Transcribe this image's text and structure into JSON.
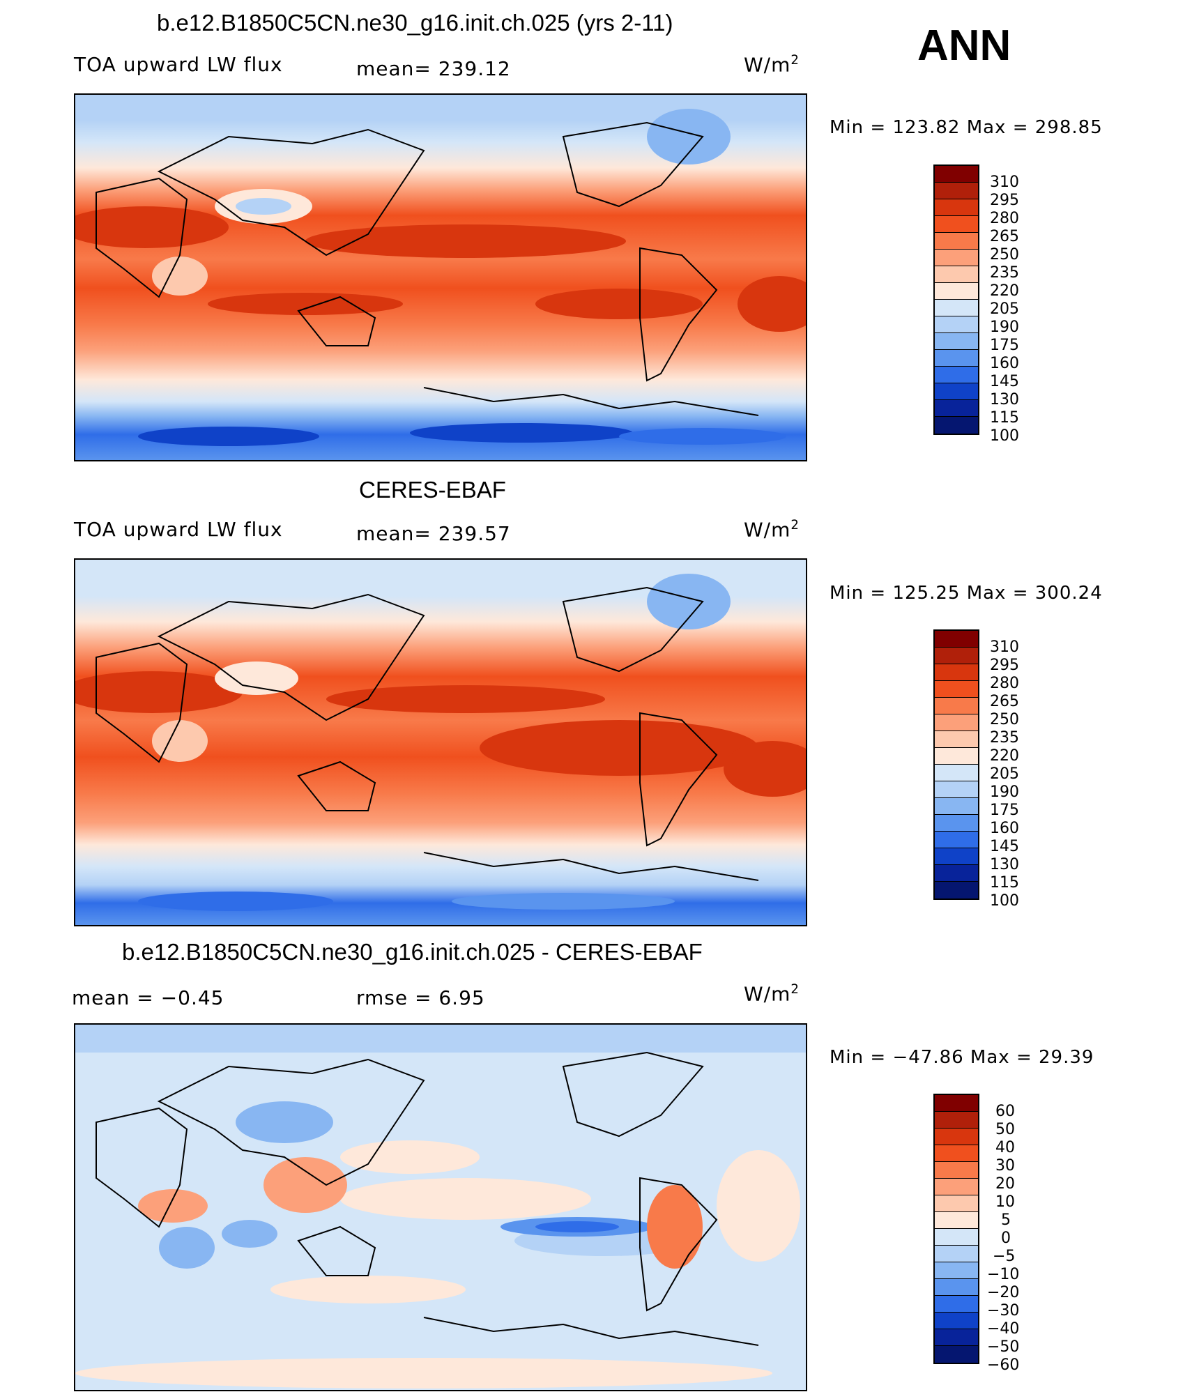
{
  "header": {
    "season": "ANN"
  },
  "panels": [
    {
      "id": "model",
      "title": "b.e12.B1850C5CN.ne30_g16.init.ch.025 (yrs 2-11)",
      "left_label": "TOA upward LW flux",
      "center_label": "mean=  239.12",
      "units": "W/m",
      "units_exp": "2",
      "minmax": "Min  =  123.82  Max  =  298.85",
      "map": "Global map of annual-mean TOA upward LW flux (model)",
      "colorbar_ticks": [
        "310",
        "295",
        "280",
        "265",
        "250",
        "235",
        "220",
        "205",
        "190",
        "175",
        "160",
        "145",
        "130",
        "115",
        "100"
      ]
    },
    {
      "id": "obs",
      "title": "CERES-EBAF",
      "left_label": "TOA upward LW flux",
      "center_label": "mean=  239.57",
      "units": "W/m",
      "units_exp": "2",
      "minmax": "Min  =  125.25  Max  =  300.24",
      "map": "Global map of annual-mean TOA upward LW flux (CERES-EBAF)",
      "colorbar_ticks": [
        "310",
        "295",
        "280",
        "265",
        "250",
        "235",
        "220",
        "205",
        "190",
        "175",
        "160",
        "145",
        "130",
        "115",
        "100"
      ]
    },
    {
      "id": "diff",
      "title": "b.e12.B1850C5CN.ne30_g16.init.ch.025 - CERES-EBAF",
      "left_label": "mean  =    −0.45",
      "center_label": "rmse  =     6.95",
      "units": "W/m",
      "units_exp": "2",
      "minmax": "Min  =  −47.86  Max  =    29.39",
      "map": "Global map of model minus CERES-EBAF difference",
      "colorbar_ticks": [
        "60",
        "50",
        "40",
        "30",
        "20",
        "10",
        "5",
        "0",
        "−5",
        "−10",
        "−20",
        "−30",
        "−40",
        "−50",
        "−60"
      ]
    }
  ],
  "colors": {
    "flux_scale": [
      "#800000",
      "#b0200a",
      "#d8360e",
      "#f0501e",
      "#f87a4a",
      "#fca07a",
      "#fdc9ae",
      "#fee8da",
      "#d4e6f8",
      "#b4d2f6",
      "#88b6f2",
      "#5a94ee",
      "#2f6de8",
      "#0f42c8",
      "#08239a",
      "#051670"
    ],
    "diff_scale": [
      "#800000",
      "#b0200a",
      "#d8360e",
      "#f0501e",
      "#f87a4a",
      "#fca07a",
      "#fdc9ae",
      "#fee8da",
      "#d4e6f8",
      "#b4d2f6",
      "#88b6f2",
      "#5a94ee",
      "#2f6de8",
      "#0f42c8",
      "#08239a",
      "#051670"
    ]
  }
}
